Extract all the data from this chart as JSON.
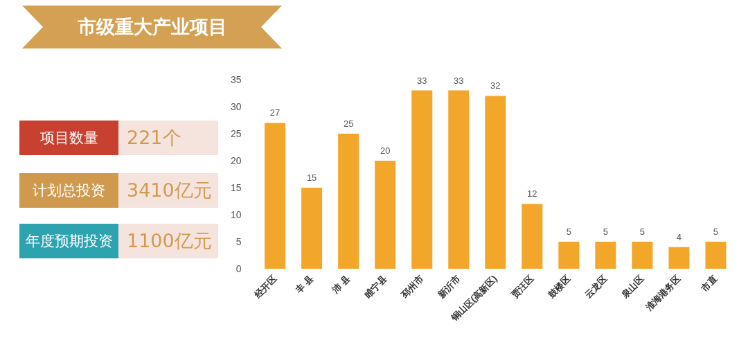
{
  "chart_data": {
    "type": "bar",
    "title": "市级重大产业项目",
    "categories": [
      "经开区",
      "丰 县",
      "沛 县",
      "睢宁县",
      "邳州市",
      "新沂市",
      "铜山区(高新区)",
      "贾汪区",
      "鼓楼区",
      "云龙区",
      "泉山区",
      "淮海港务区",
      "市直"
    ],
    "values": [
      27,
      15,
      25,
      20,
      33,
      33,
      32,
      12,
      5,
      5,
      5,
      4,
      5
    ],
    "color": "#f2a62a",
    "ylim": [
      0,
      35
    ],
    "yticks": [
      0,
      5,
      10,
      15,
      20,
      25,
      30,
      35
    ],
    "grid": false,
    "data_labels": true,
    "annotations": [
      "项目数量",
      "221个",
      "计划总投资",
      "3410亿元",
      "年度预期投资",
      "1100亿元"
    ]
  }
}
